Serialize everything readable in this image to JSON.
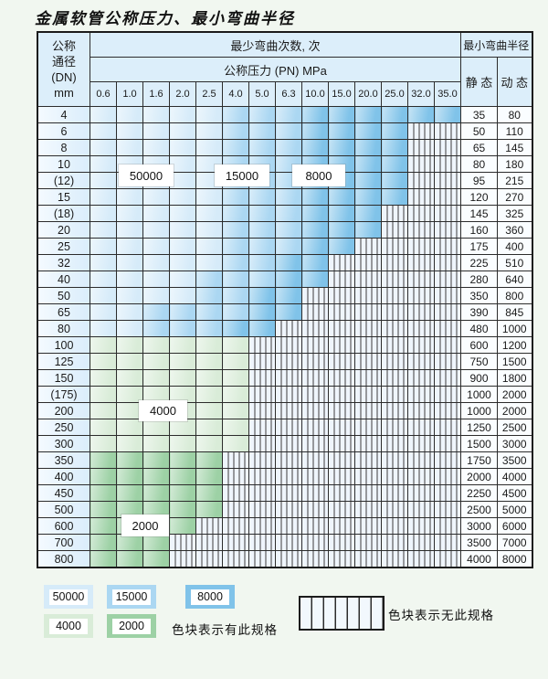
{
  "title": "金属软管公称压力、最小弯曲半径",
  "table": {
    "dn_header": [
      "公称",
      "通径",
      "(DN)",
      "mm"
    ],
    "cycles_header": "最少弯曲次数, 次",
    "pressure_header": "公称压力 (PN) MPa",
    "radius_header": "最小弯曲半径",
    "static_header": "静 态",
    "dynamic_header": "动 态",
    "pressure_columns": [
      "0.6",
      "1.0",
      "1.6",
      "2.0",
      "2.5",
      "4.0",
      "5.0",
      "6.3",
      "10.0",
      "15.0",
      "20.0",
      "25.0",
      "32.0",
      "35.0"
    ],
    "rows": [
      {
        "dn": "4",
        "regions": "AAAAABBBCCCCCC",
        "static": "35",
        "dynamic": "80"
      },
      {
        "dn": "6",
        "regions": "AAAAABBBCCCC..",
        "static": "50",
        "dynamic": "110"
      },
      {
        "dn": "8",
        "regions": "AAAAABBBCCCC..",
        "static": "65",
        "dynamic": "145"
      },
      {
        "dn": "10",
        "regions": "AAAAABBBCCCC..",
        "static": "80",
        "dynamic": "180"
      },
      {
        "dn": "(12)",
        "regions": "AAAAABBBCCCC..",
        "static": "95",
        "dynamic": "215"
      },
      {
        "dn": "15",
        "regions": "AAAAABBBCCCC..",
        "static": "120",
        "dynamic": "270"
      },
      {
        "dn": "(18)",
        "regions": "AAAAABBBCCC...",
        "static": "145",
        "dynamic": "325"
      },
      {
        "dn": "20",
        "regions": "AAAAABBBCCC...",
        "static": "160",
        "dynamic": "360"
      },
      {
        "dn": "25",
        "regions": "AAAAABBBCC....",
        "static": "175",
        "dynamic": "400"
      },
      {
        "dn": "32",
        "regions": "AAAAABBCC.....",
        "static": "225",
        "dynamic": "510"
      },
      {
        "dn": "40",
        "regions": "AAAABBBCC.....",
        "static": "280",
        "dynamic": "640"
      },
      {
        "dn": "50",
        "regions": "AAAABBCC......",
        "static": "350",
        "dynamic": "800"
      },
      {
        "dn": "65",
        "regions": "AABBBBCC......",
        "static": "390",
        "dynamic": "845"
      },
      {
        "dn": "80",
        "regions": "AABBBCC.......",
        "static": "480",
        "dynamic": "1000"
      },
      {
        "dn": "100",
        "regions": "DDDDDD........",
        "static": "600",
        "dynamic": "1200"
      },
      {
        "dn": "125",
        "regions": "DDDDDD........",
        "static": "750",
        "dynamic": "1500"
      },
      {
        "dn": "150",
        "regions": "DDDDDD........",
        "static": "900",
        "dynamic": "1800"
      },
      {
        "dn": "(175)",
        "regions": "DDDDDD........",
        "static": "1000",
        "dynamic": "2000"
      },
      {
        "dn": "200",
        "regions": "DDDDDD........",
        "static": "1000",
        "dynamic": "2000"
      },
      {
        "dn": "250",
        "regions": "DDDDDD........",
        "static": "1250",
        "dynamic": "2500"
      },
      {
        "dn": "300",
        "regions": "DDDDDD........",
        "static": "1500",
        "dynamic": "3000"
      },
      {
        "dn": "350",
        "regions": "EEEEE.........",
        "static": "1750",
        "dynamic": "3500"
      },
      {
        "dn": "400",
        "regions": "EEEEE.........",
        "static": "2000",
        "dynamic": "4000"
      },
      {
        "dn": "450",
        "regions": "EEEEE.........",
        "static": "2250",
        "dynamic": "4500"
      },
      {
        "dn": "500",
        "regions": "EEEEE.........",
        "static": "2500",
        "dynamic": "5000"
      },
      {
        "dn": "600",
        "regions": "EEEE..........",
        "static": "3000",
        "dynamic": "6000"
      },
      {
        "dn": "700",
        "regions": "EEE...........",
        "static": "3500",
        "dynamic": "7000"
      },
      {
        "dn": "800",
        "regions": "EEE...........",
        "static": "4000",
        "dynamic": "8000"
      }
    ]
  },
  "legend": {
    "items": [
      {
        "value": "50000",
        "color": "#d6ebf9"
      },
      {
        "value": "15000",
        "color": "#abd7f2"
      },
      {
        "value": "8000",
        "color": "#80c3e9"
      },
      {
        "value": "4000",
        "color": "#d9ecd8"
      },
      {
        "value": "2000",
        "color": "#9dd1a5"
      }
    ],
    "has_spec_label": "色块表示有此规格",
    "no_spec_label": "色块表示无此规格"
  }
}
